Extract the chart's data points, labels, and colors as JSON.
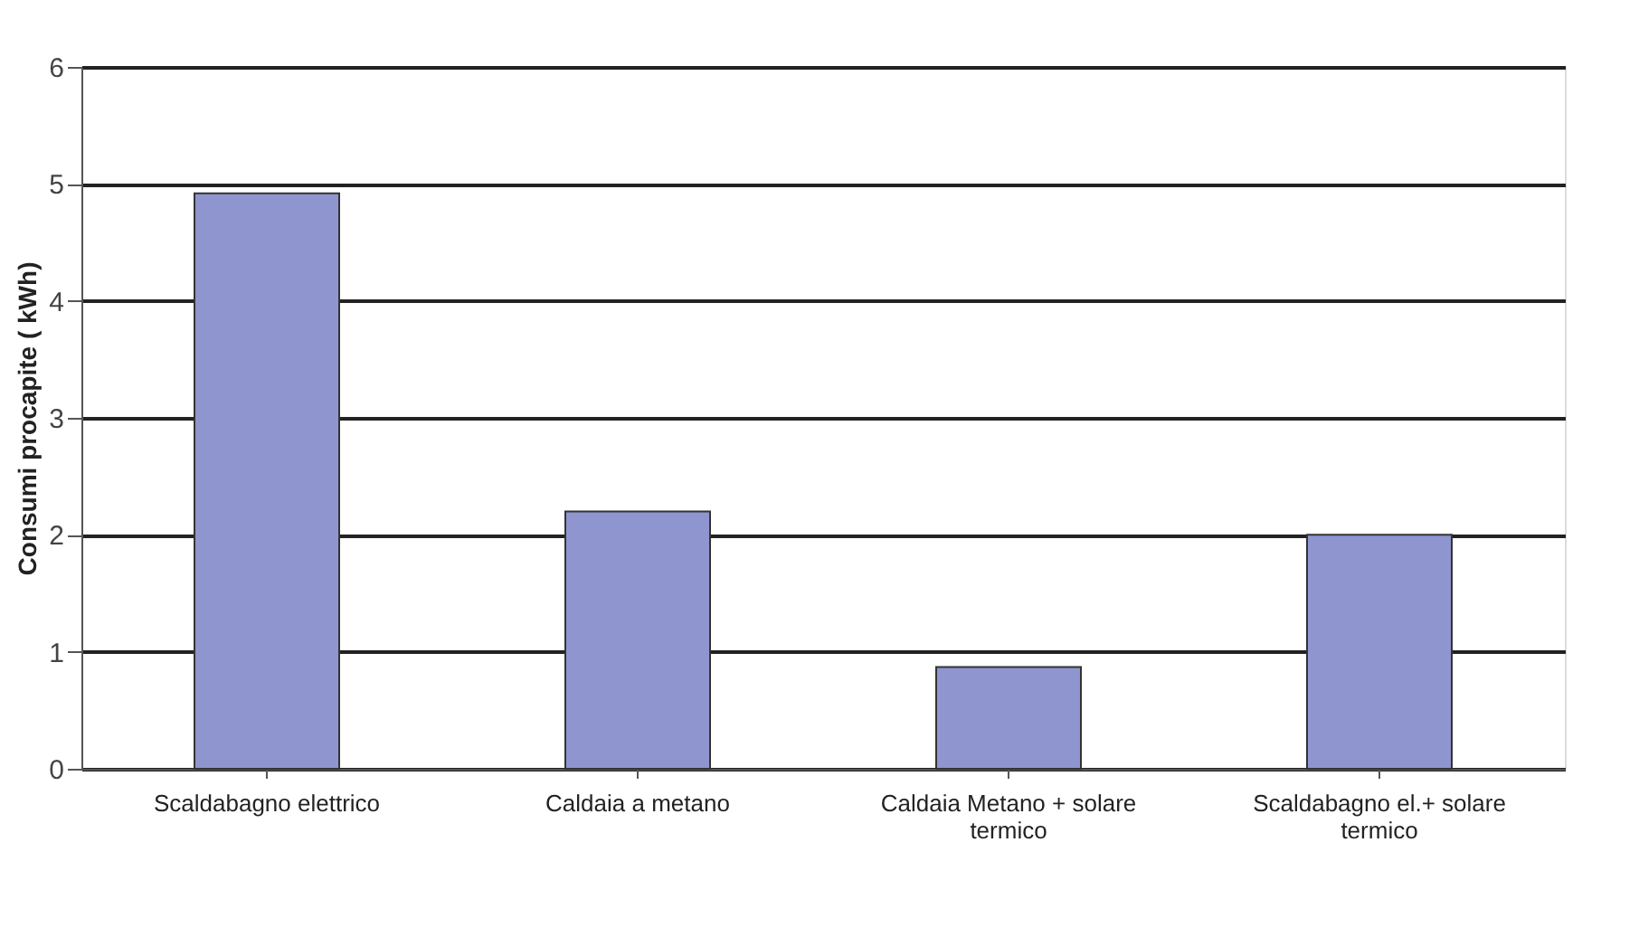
{
  "chart_data": {
    "type": "bar",
    "ylabel": "Consumi procapite ( kWh)",
    "categories": [
      "Scaldabagno elettrico",
      "Caldaia a metano",
      "Caldaia Metano + solare termico",
      "Scaldabagno el.+ solare termico"
    ],
    "values": [
      4.92,
      2.2,
      0.87,
      2.0
    ],
    "color": "#8f95cf",
    "ylim": [
      0,
      6
    ],
    "yticks": [
      0,
      1,
      2,
      3,
      4,
      5,
      6
    ],
    "grid": "y"
  }
}
